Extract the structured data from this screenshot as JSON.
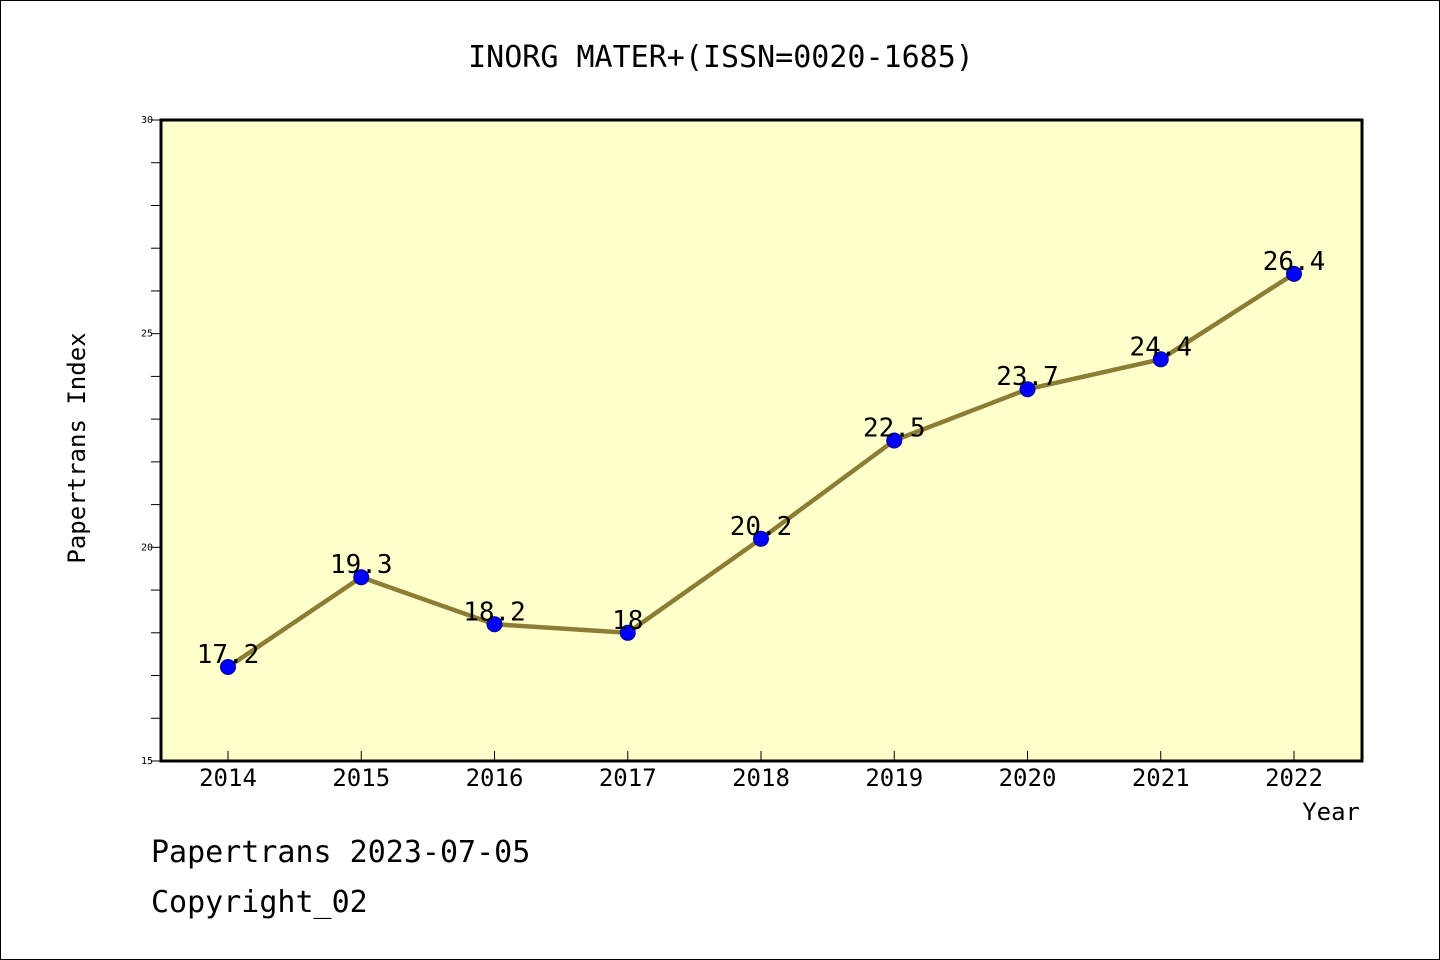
{
  "chart_data": {
    "type": "line",
    "title": "INORG MATER+(ISSN=0020-1685)",
    "xlabel": "Year",
    "ylabel": "Papertrans Index",
    "categories": [
      "2014",
      "2015",
      "2016",
      "2017",
      "2018",
      "2019",
      "2020",
      "2021",
      "2022"
    ],
    "series": [
      {
        "values": [
          17.2,
          19.3,
          18.2,
          18,
          20.2,
          22.5,
          23.7,
          24.4,
          26.4
        ],
        "labels": [
          "17.2",
          "19.3",
          "18.2",
          "18",
          "20.2",
          "22.5",
          "23.7",
          "24.4",
          "26.4"
        ]
      }
    ],
    "ylim": [
      15,
      30
    ],
    "yticks": [
      "15",
      "20",
      "25",
      "30"
    ],
    "grid": false,
    "legend": "none",
    "colors": {
      "plot_background": "#ffffcc",
      "line": "#8b7d34",
      "marker_fill": "#0000ff",
      "marker_stroke": "#00008b"
    }
  },
  "footer": {
    "line1": "Papertrans 2023-07-05",
    "line2": "Copyright_02"
  }
}
